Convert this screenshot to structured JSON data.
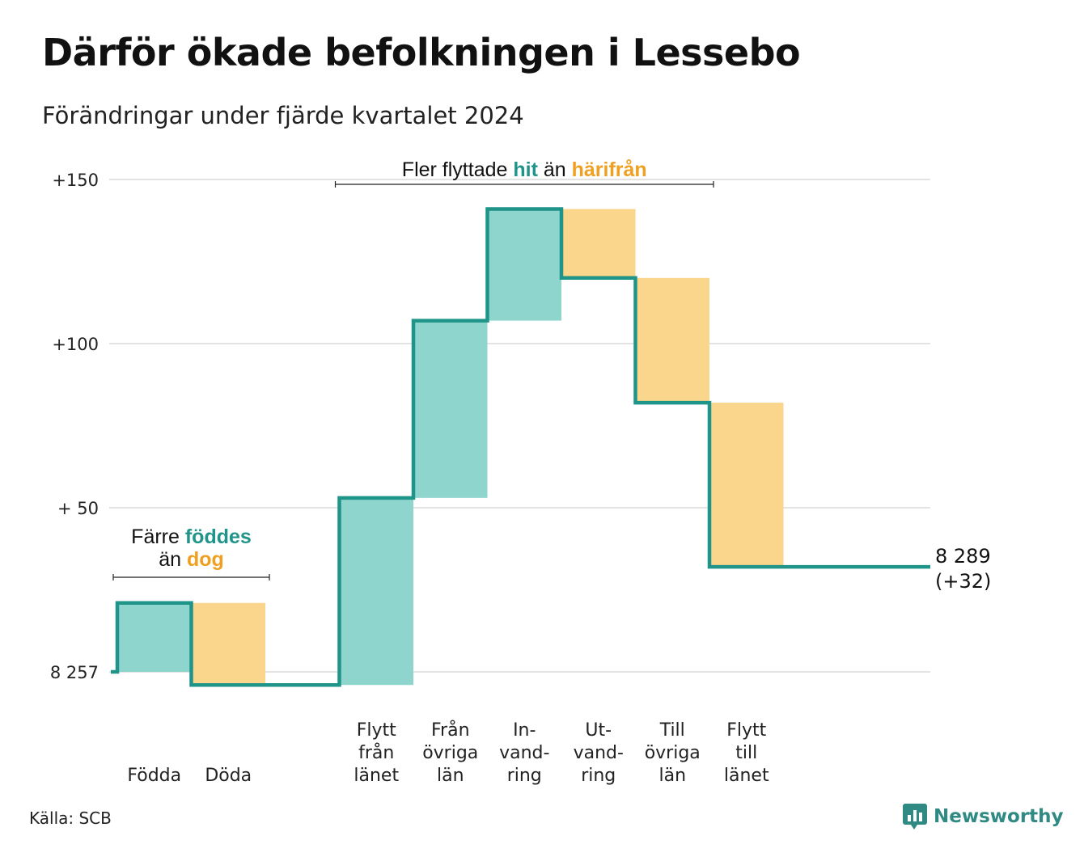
{
  "title": "Därför ökade befolkningen i Lessebo",
  "subtitle": "Förändringar under fjärde kvartalet 2024",
  "source": "Källa: SCB",
  "brand": "Newsworthy",
  "colors": {
    "line": "#1f9488",
    "increase": "#8ed5cd",
    "decrease": "#fad58c",
    "grid": "#e3e3e3",
    "hit": "#1f9488",
    "harifran": "#f0a020"
  },
  "chart_data": {
    "type": "waterfall",
    "baseline_label": "8 257",
    "y_ticks": [
      {
        "value": 0,
        "label": "8 257"
      },
      {
        "value": 50,
        "label": "+ 50"
      },
      {
        "value": 100,
        "label": "+100"
      },
      {
        "value": 150,
        "label": "+150"
      }
    ],
    "ylim": [
      -10,
      155
    ],
    "steps": [
      {
        "label": [
          "Födda"
        ],
        "start": 0,
        "end": 21,
        "kind": "increase"
      },
      {
        "label": [
          "Döda"
        ],
        "start": 21,
        "end": -4,
        "kind": "decrease"
      },
      {
        "label": [],
        "start": -4,
        "end": -4,
        "kind": "gap"
      },
      {
        "label": [
          "Flytt",
          "från",
          "länet"
        ],
        "start": -4,
        "end": 53,
        "kind": "increase"
      },
      {
        "label": [
          "Från",
          "övriga",
          "län"
        ],
        "start": 53,
        "end": 107,
        "kind": "increase"
      },
      {
        "label": [
          "In-",
          "vand-",
          "ring"
        ],
        "start": 107,
        "end": 141,
        "kind": "increase"
      },
      {
        "label": [
          "Ut-",
          "vand-",
          "ring"
        ],
        "start": 141,
        "end": 120,
        "kind": "decrease"
      },
      {
        "label": [
          "Till",
          "övriga",
          "län"
        ],
        "start": 120,
        "end": 82,
        "kind": "decrease"
      },
      {
        "label": [
          "Flytt",
          "till",
          "länet"
        ],
        "start": 82,
        "end": 32,
        "kind": "decrease"
      }
    ],
    "final": {
      "value": 32,
      "label_line1": "8 289",
      "label_line2": "(+32)"
    },
    "annotations": [
      {
        "parts": [
          {
            "text": "Färre ",
            "style": "plain"
          },
          {
            "text": "föddes",
            "style": "hit"
          }
        ],
        "parts2": [
          {
            "text": "än ",
            "style": "plain"
          },
          {
            "text": "dog",
            "style": "harifran"
          }
        ],
        "from_step": 0,
        "to_step": 1
      },
      {
        "parts": [
          {
            "text": "Fler flyttade ",
            "style": "plain"
          },
          {
            "text": "hit",
            "style": "hit"
          },
          {
            "text": " än ",
            "style": "plain"
          },
          {
            "text": "härifrån",
            "style": "harifran"
          }
        ],
        "from_step": 3,
        "to_step": 8
      }
    ]
  }
}
